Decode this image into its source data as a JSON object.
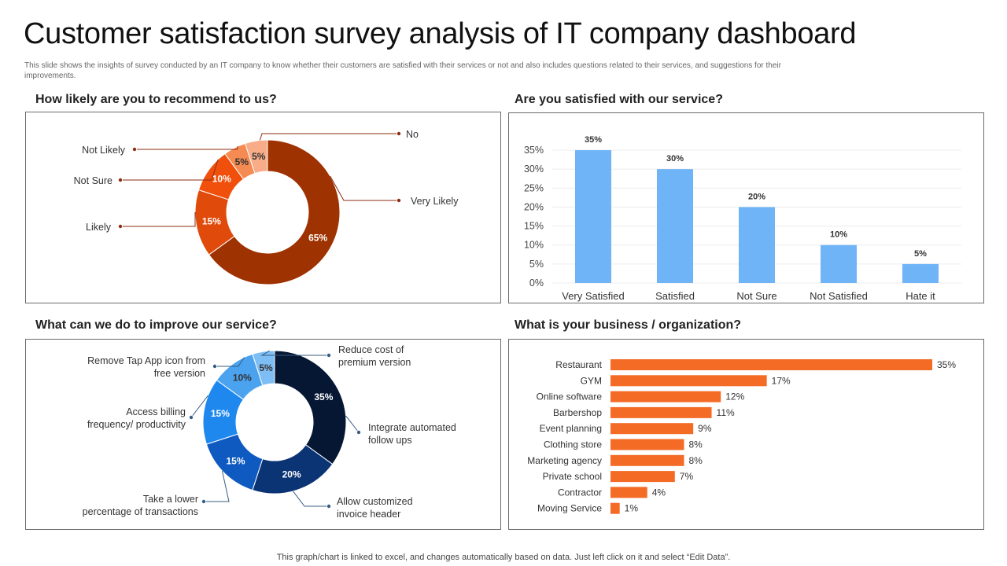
{
  "header": {
    "title": "Customer satisfaction survey analysis of IT company dashboard",
    "subtitle": "This slide shows the insights of survey conducted by an IT company to know whether their customers are satisfied with their services or not and also includes questions related to their services, and suggestions for their improvements."
  },
  "footer": {
    "note": "This graph/chart is linked to excel, and changes automatically based on data. Just left click on it and select “Edit Data”."
  },
  "colors": {
    "recommend": [
      "#9E3200",
      "#E04A0A",
      "#F0500C",
      "#F58A52",
      "#F8AC88"
    ],
    "satisfied_bar": "#6EB4F7",
    "improve": [
      "#061733",
      "#0B3475",
      "#0F5AC0",
      "#1E88EE",
      "#4BA3F0",
      "#7EBEF5"
    ],
    "business_bar": "#F46B26"
  },
  "chart_data": [
    {
      "type": "pie",
      "title": "How likely are you to recommend to us?",
      "categories": [
        "Very Likely",
        "Likely",
        "Not Sure",
        "Not Likely",
        "No"
      ],
      "values": [
        65,
        15,
        10,
        5,
        5
      ],
      "value_labels": [
        "65%",
        "15%",
        "10%",
        "5%",
        "5%"
      ]
    },
    {
      "type": "bar",
      "title": "Are you satisfied with our service?",
      "categories": [
        "Very Satisfied",
        "Satisfied",
        "Not Sure",
        "Not Satisfied",
        "Hate it"
      ],
      "values": [
        35,
        30,
        20,
        10,
        5
      ],
      "value_labels": [
        "35%",
        "30%",
        "20%",
        "10%",
        "5%"
      ],
      "ytick_labels": [
        "0%",
        "5%",
        "10%",
        "15%",
        "20%",
        "25%",
        "30%",
        "35%"
      ],
      "ylim": [
        0,
        35
      ],
      "grid": true
    },
    {
      "type": "pie",
      "title": "What can we do to improve our service?",
      "categories": [
        "Integrate automated follow ups",
        "Allow customized invoice header",
        "Take a lower percentage of transactions",
        "Access billing frequency/ productivity",
        "Remove Tap App icon from free version",
        "Reduce cost of premium version"
      ],
      "label_lines": [
        [
          "Integrate  automated",
          "follow  ups"
        ],
        [
          "Allow customized",
          "invoice  header"
        ],
        [
          "Take  a lower",
          "percentage  of transactions"
        ],
        [
          "Access billing",
          "frequency/  productivity"
        ],
        [
          "Remove  Tap  App icon from",
          "free version"
        ],
        [
          "Reduce cost of",
          "premium version"
        ]
      ],
      "values": [
        35,
        20,
        15,
        15,
        10,
        5
      ],
      "value_labels": [
        "35%",
        "20%",
        "15%",
        "15%",
        "10%",
        "5%"
      ]
    },
    {
      "type": "bar",
      "orientation": "horizontal",
      "title": "What is your business / organization?",
      "categories": [
        "Restaurant",
        "GYM",
        "Online software",
        "Barbershop",
        "Event planning",
        "Clothing store",
        "Marketing agency",
        "Private school",
        "Contractor",
        "Moving Service"
      ],
      "values": [
        35,
        17,
        12,
        11,
        9,
        8,
        8,
        7,
        4,
        1
      ],
      "value_labels": [
        "35%",
        "17%",
        "12%",
        "11%",
        "9%",
        "8%",
        "8%",
        "7%",
        "4%",
        "1%"
      ]
    }
  ]
}
